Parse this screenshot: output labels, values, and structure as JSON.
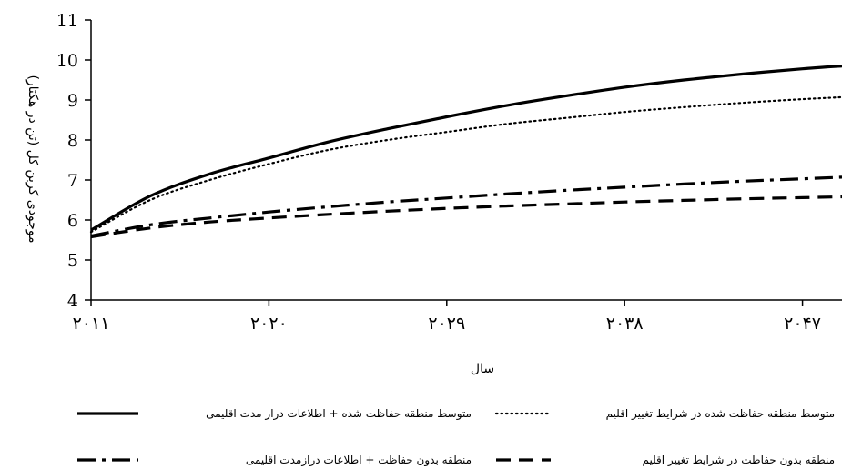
{
  "chart_data": {
    "type": "line",
    "xlabel": "سال",
    "ylabel": "موجودی کربن کل (تن در هکتار)",
    "ylim": [
      4,
      11
    ],
    "xlim": [
      2011,
      2049
    ],
    "grid": false,
    "legend_position": "bottom",
    "y_ticks": [
      4,
      5,
      6,
      7,
      8,
      9,
      10,
      11
    ],
    "y_tick_labels": [
      "4",
      "5",
      "6",
      "7",
      "8",
      "9",
      "10",
      "11"
    ],
    "x_ticks": [
      2011,
      2020,
      2029,
      2038,
      2047
    ],
    "x_tick_labels": [
      "۲۰۱۱",
      "۲۰۲۰",
      "۲۰۲۹",
      "۲۰۳۸",
      "۲۰۴۷"
    ],
    "series": [
      {
        "name": "متوسط منطقه حفاظت شده + اطلاعات دراز مدت اقلیمی",
        "style": "solid",
        "color": "#000000",
        "x": [
          2011,
          2014,
          2017,
          2020,
          2023,
          2026,
          2029,
          2032,
          2035,
          2038,
          2041,
          2044,
          2047,
          2049
        ],
        "values": [
          5.75,
          6.6,
          7.15,
          7.55,
          7.95,
          8.28,
          8.58,
          8.86,
          9.1,
          9.32,
          9.5,
          9.65,
          9.78,
          9.85
        ]
      },
      {
        "name": "متوسط منطقه حفاظت شده در شرایط تغییر اقلیم",
        "style": "dotted",
        "color": "#000000",
        "x": [
          2011,
          2014,
          2017,
          2020,
          2023,
          2026,
          2029,
          2032,
          2035,
          2038,
          2041,
          2044,
          2047,
          2049
        ],
        "values": [
          5.7,
          6.5,
          7.0,
          7.4,
          7.75,
          8.0,
          8.2,
          8.4,
          8.55,
          8.7,
          8.82,
          8.93,
          9.02,
          9.07
        ]
      },
      {
        "name": "منطقه بدون حفاظت + اطلاعات درازمدت اقلیمی",
        "style": "dash-dot",
        "color": "#000000",
        "x": [
          2011,
          2014,
          2017,
          2020,
          2023,
          2026,
          2029,
          2032,
          2035,
          2038,
          2041,
          2044,
          2047,
          2049
        ],
        "values": [
          5.6,
          5.88,
          6.05,
          6.2,
          6.33,
          6.45,
          6.55,
          6.65,
          6.74,
          6.82,
          6.9,
          6.97,
          7.03,
          7.07
        ]
      },
      {
        "name": "منطقه بدون حفاظت در شرایط تغییر اقلیم",
        "style": "dashed",
        "color": "#000000",
        "x": [
          2011,
          2014,
          2017,
          2020,
          2023,
          2026,
          2029,
          2032,
          2035,
          2038,
          2041,
          2044,
          2047,
          2049
        ],
        "values": [
          5.58,
          5.8,
          5.95,
          6.05,
          6.14,
          6.22,
          6.29,
          6.35,
          6.4,
          6.45,
          6.49,
          6.53,
          6.56,
          6.58
        ]
      }
    ],
    "legend": [
      {
        "label": "متوسط منطقه حفاظت شده + اطلاعات دراز مدت اقلیمی",
        "style": "solid"
      },
      {
        "label": "متوسط منطقه حفاظت شده در شرایط تغییر اقلیم",
        "style": "dotted"
      },
      {
        "label": "منطقه بدون حفاظت + اطلاعات درازمدت اقلیمی",
        "style": "dash-dot"
      },
      {
        "label": "منطقه بدون حفاظت در شرایط تغییر اقلیم",
        "style": "dashed"
      }
    ]
  }
}
